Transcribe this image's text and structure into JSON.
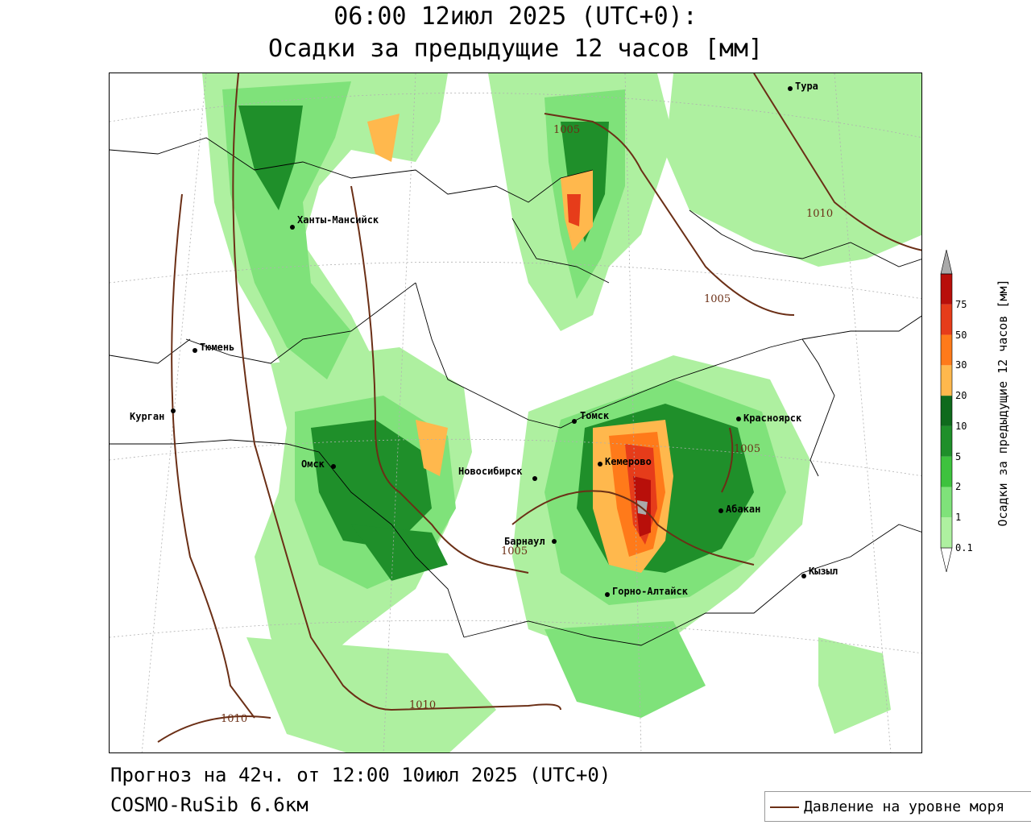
{
  "header": {
    "title_line1": "06:00 12июл 2025 (UTC+0):",
    "title_line2": "Осадки за предыдущие 12 часов [мм]"
  },
  "footer": {
    "forecast": "Прогноз на 42ч. от 12:00 10июл 2025 (UTC+0)",
    "model": "COSMO-RuSib 6.6км"
  },
  "legend": {
    "isobar_label": "Давление на уровне моря"
  },
  "colorbar": {
    "title": "Осадки за предыдущие 12 часов [мм]",
    "levels": [
      "0.1",
      "1",
      "2",
      "5",
      "10",
      "20",
      "30",
      "50",
      "75"
    ],
    "colors": [
      "#ffffff",
      "#aef0a0",
      "#7fe27a",
      "#3ec23e",
      "#1f8f2a",
      "#0f6a1c",
      "#ffb84d",
      "#ff7a1a",
      "#e63c1a",
      "#b80f0a",
      "#aaaaaa"
    ]
  },
  "cities": [
    {
      "name": "Тура"
    },
    {
      "name": "Ханты-Мансийск"
    },
    {
      "name": "Тюмень"
    },
    {
      "name": "Курган"
    },
    {
      "name": "Омск"
    },
    {
      "name": "Новосибирск"
    },
    {
      "name": "Томск"
    },
    {
      "name": "Кемерово"
    },
    {
      "name": "Красноярск"
    },
    {
      "name": "Абакан"
    },
    {
      "name": "Барнаул"
    },
    {
      "name": "Горно-Алтайск"
    },
    {
      "name": "Кызыл"
    }
  ],
  "isobars": [
    "1005",
    "1010",
    "1005",
    "1005",
    "1005",
    "1010",
    "1010"
  ]
}
